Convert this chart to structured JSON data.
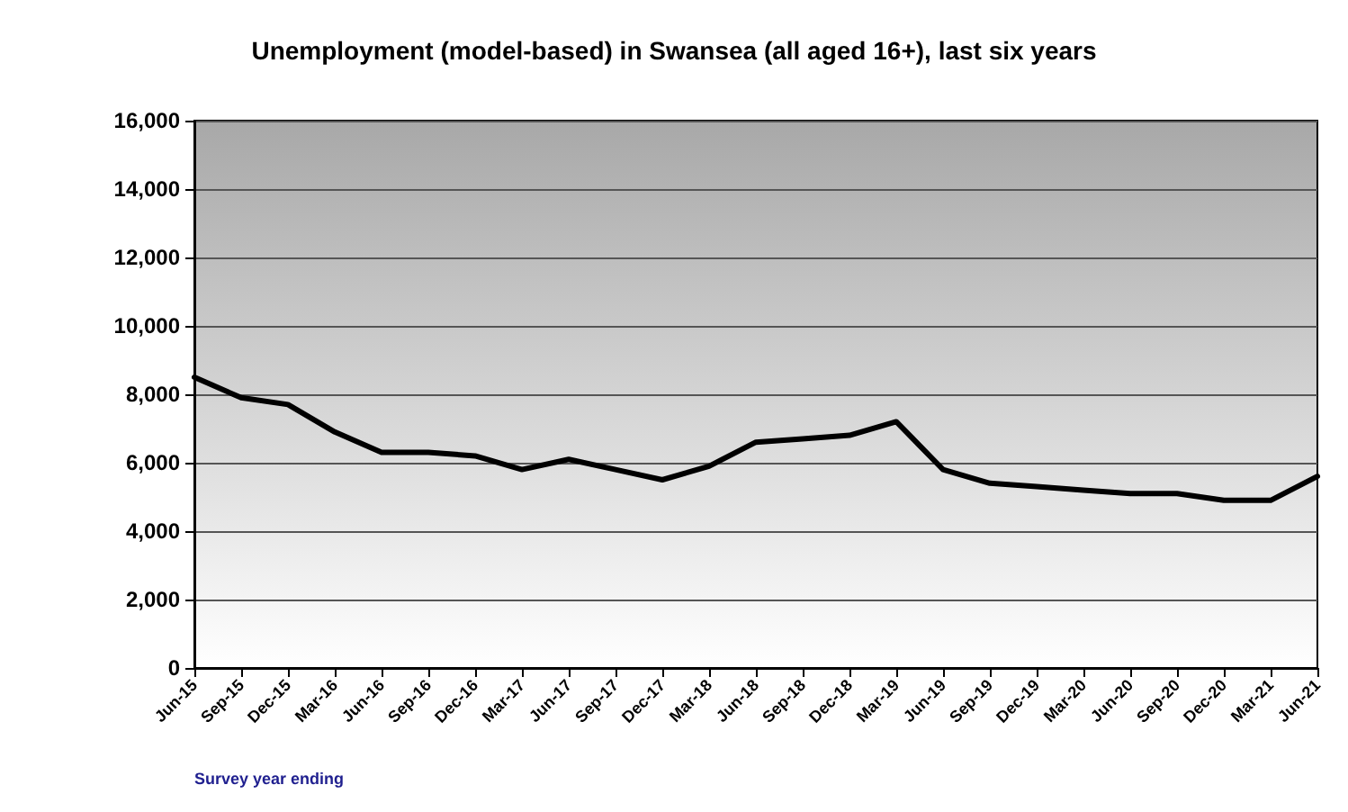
{
  "chart_data": {
    "type": "line",
    "title": "Unemployment (model-based) in Swansea (all aged 16+), last six years",
    "categories": [
      "Jun-15",
      "Sep-15",
      "Dec-15",
      "Mar-16",
      "Jun-16",
      "Sep-16",
      "Dec-16",
      "Mar-17",
      "Jun-17",
      "Sep-17",
      "Dec-17",
      "Mar-18",
      "Jun-18",
      "Sep-18",
      "Dec-18",
      "Mar-19",
      "Jun-19",
      "Sep-19",
      "Dec-19",
      "Mar-20",
      "Jun-20",
      "Sep-20",
      "Dec-20",
      "Mar-21",
      "Jun-21"
    ],
    "series": [
      {
        "color": "#000000",
        "values": [
          8500,
          7900,
          7700,
          6900,
          6300,
          6300,
          6200,
          5800,
          6100,
          5800,
          5500,
          5900,
          6600,
          6700,
          6800,
          7200,
          5800,
          5400,
          5300,
          5200,
          5100,
          5100,
          4900,
          4900,
          5600
        ]
      }
    ],
    "ylim": [
      0,
      16000
    ],
    "yticks": [
      0,
      {
        "value": 2000,
        "label": "2,000"
      },
      {
        "value": 4000,
        "label": "4,000"
      },
      {
        "value": 6000,
        "label": "6,000"
      },
      {
        "value": 8000,
        "label": "8,000"
      },
      {
        "value": 10000,
        "label": "10,000"
      },
      {
        "value": 12000,
        "label": "12,000"
      },
      {
        "value": 14000,
        "label": "14,000"
      },
      {
        "value": 16000,
        "label": "16,000"
      }
    ],
    "grid": "y",
    "marker": "none",
    "line_style": "solid",
    "annotations": [
      "Survey year ending"
    ]
  }
}
